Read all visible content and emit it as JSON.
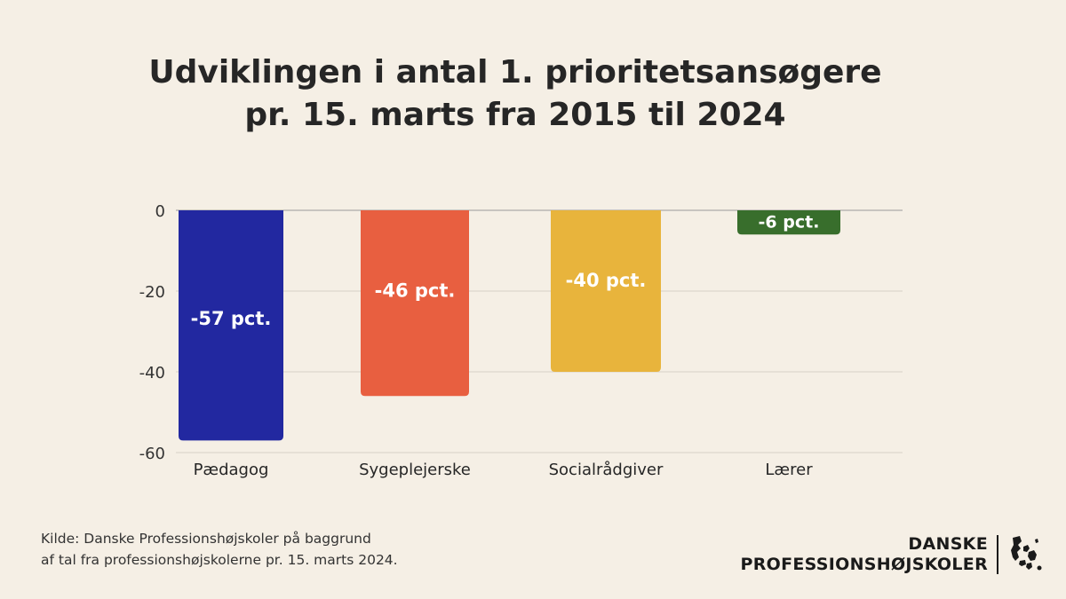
{
  "title": {
    "line1": "Udviklingen i antal 1. prioritetsansøgere",
    "line2": "pr. 15. marts fra 2015 til 2024"
  },
  "chart_data": {
    "type": "bar",
    "categories": [
      "Pædagog",
      "Sygeplejerske",
      "Socialrådgiver",
      "Lærer"
    ],
    "values": [
      -57,
      -46,
      -40,
      -6
    ],
    "data_labels": [
      "-57 pct.",
      "-46 pct.",
      "-40 pct.",
      "-6 pct."
    ],
    "colors": [
      "#2228a0",
      "#e85f40",
      "#e8b43c",
      "#386e2c"
    ],
    "y_ticks": [
      0,
      -20,
      -40,
      -60
    ],
    "y_tick_labels": [
      "0",
      "-20",
      "-40",
      "-60"
    ],
    "ylim": [
      -60,
      0
    ],
    "grid": true,
    "legend": "none"
  },
  "source": {
    "line1": "Kilde: Danske Professionshøjskoler på baggrund",
    "line2": "af tal fra professionshøjskolerne pr. 15. marts 2024."
  },
  "logo": {
    "line1": "DANSKE",
    "line2": "PROFESSIONSHØJSKOLER",
    "map_icon": "denmark-map-icon"
  }
}
